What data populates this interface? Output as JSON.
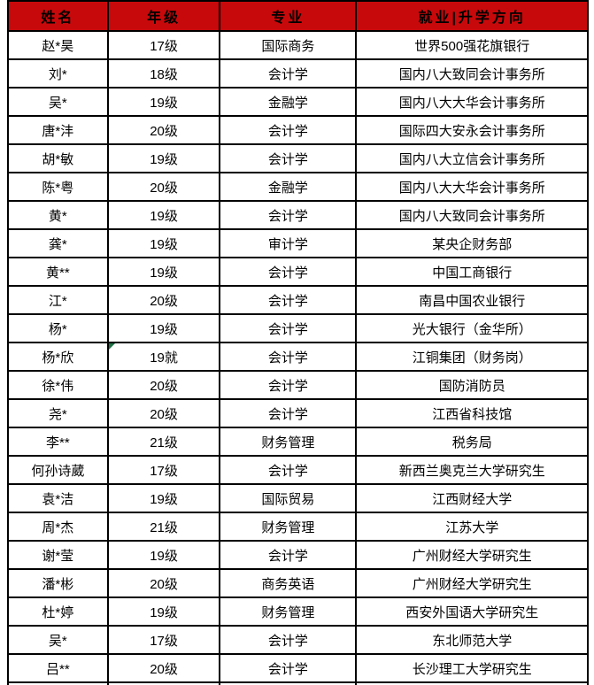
{
  "colors": {
    "header_bg": "#C8090B",
    "border": "#000000",
    "marker_green": "#1E7145"
  },
  "table": {
    "headers": {
      "name": "姓名",
      "grade": "年级",
      "major": "专业",
      "destination": "就业|升学方向"
    },
    "rows": [
      {
        "name": "赵*昊",
        "grade": "17级",
        "major": "国际商务",
        "destination": "世界500强花旗银行"
      },
      {
        "name": "刘*",
        "grade": "18级",
        "major": "会计学",
        "destination": "国内八大致同会计事务所"
      },
      {
        "name": "吴*",
        "grade": "19级",
        "major": "金融学",
        "destination": "国内八大大华会计事务所"
      },
      {
        "name": "唐*沣",
        "grade": "20级",
        "major": "会计学",
        "destination": "国际四大安永会计事务所"
      },
      {
        "name": "胡*敏",
        "grade": "19级",
        "major": "会计学",
        "destination": "国内八大立信会计事务所"
      },
      {
        "name": "陈*粤",
        "grade": "20级",
        "major": "金融学",
        "destination": "国内八大大华会计事务所"
      },
      {
        "name": "黄*",
        "grade": "19级",
        "major": "会计学",
        "destination": "国内八大致同会计事务所"
      },
      {
        "name": "龚*",
        "grade": "19级",
        "major": "审计学",
        "destination": "某央企财务部"
      },
      {
        "name": "黄**",
        "grade": "19级",
        "major": "会计学",
        "destination": "中国工商银行"
      },
      {
        "name": "江*",
        "grade": "20级",
        "major": "会计学",
        "destination": "南昌中国农业银行"
      },
      {
        "name": "杨*",
        "grade": "19级",
        "major": "会计学",
        "destination": "光大银行（金华所）"
      },
      {
        "name": "杨*欣",
        "grade": "19就",
        "major": "会计学",
        "destination": "江铜集团（财务岗）",
        "error_marker": true
      },
      {
        "name": "徐*伟",
        "grade": "20级",
        "major": "会计学",
        "destination": "国防消防员"
      },
      {
        "name": "尧*",
        "grade": "20级",
        "major": "会计学",
        "destination": "江西省科技馆"
      },
      {
        "name": "李**",
        "grade": "21级",
        "major": "财务管理",
        "destination": "税务局"
      },
      {
        "name": "何孙诗葳",
        "grade": "17级",
        "major": "会计学",
        "destination": "新西兰奥克兰大学研究生"
      },
      {
        "name": "袁*洁",
        "grade": "19级",
        "major": "国际贸易",
        "destination": "江西财经大学"
      },
      {
        "name": "周*杰",
        "grade": "21级",
        "major": "财务管理",
        "destination": "江苏大学"
      },
      {
        "name": "谢*莹",
        "grade": "19级",
        "major": "会计学",
        "destination": "广州财经大学研究生"
      },
      {
        "name": "潘*彬",
        "grade": "20级",
        "major": "商务英语",
        "destination": "广州财经大学研究生"
      },
      {
        "name": "杜*婷",
        "grade": "19级",
        "major": "财务管理",
        "destination": "西安外国语大学研究生"
      },
      {
        "name": "吴*",
        "grade": "17级",
        "major": "会计学",
        "destination": "东北师范大学"
      },
      {
        "name": "吕**",
        "grade": "20级",
        "major": "会计学",
        "destination": "长沙理工大学研究生"
      }
    ]
  }
}
